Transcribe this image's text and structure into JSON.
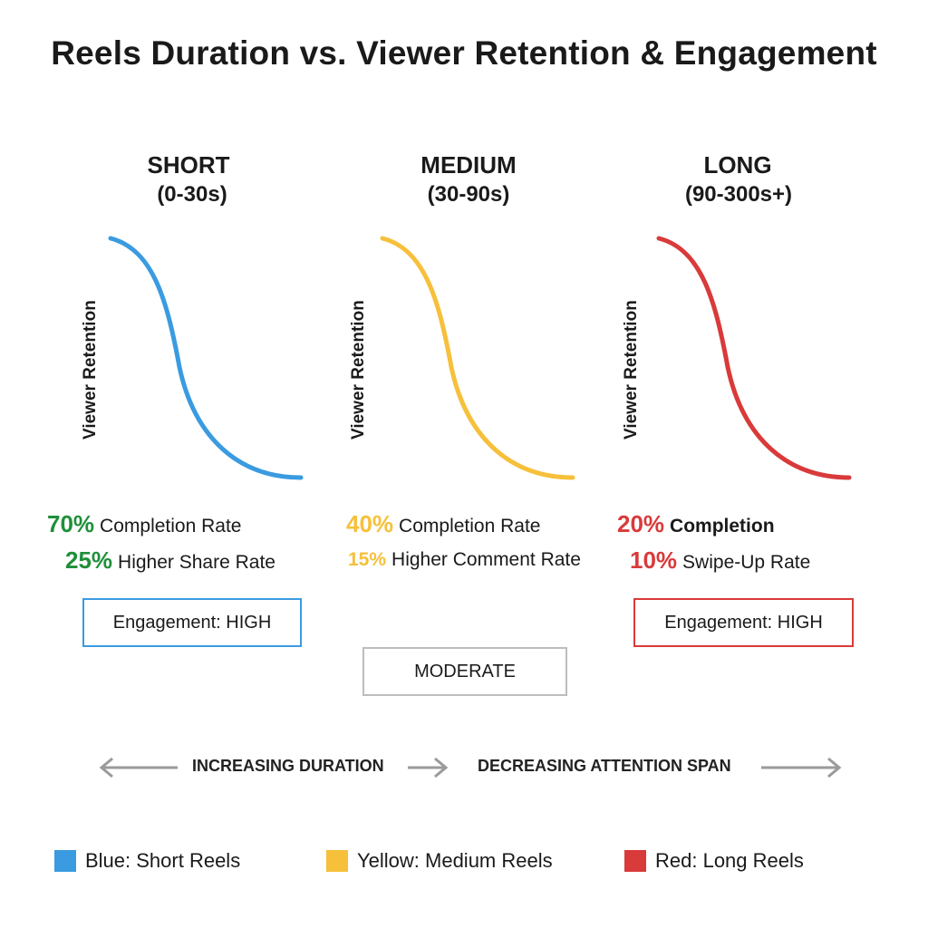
{
  "title": "Reels Duration vs. Viewer Retention & Engagement",
  "colors": {
    "short": "#3b9be0",
    "medium": "#f6c03b",
    "long": "#d93a3a",
    "green": "#1f8f3a",
    "gray": "#9a9a9a"
  },
  "panels": [
    {
      "name": "SHORT",
      "range": "(0-30s)",
      "y_label": "Viewer Retention",
      "stat1_value": "70%",
      "stat1_label": "Completion Rate",
      "stat2_value": "25%",
      "stat2_label": "Higher Share Rate",
      "engagement": "Engagement: HIGH"
    },
    {
      "name": "MEDIUM",
      "range": "(30-90s)",
      "y_label": "Viewer Retention",
      "stat1_value": "40%",
      "stat1_label": "Completion Rate",
      "stat2_value": "15%",
      "stat2_label": "Higher Comment Rate",
      "engagement": "MODERATE"
    },
    {
      "name": "LONG",
      "range": "(90-300s+)",
      "y_label": "Viewer Retention",
      "stat1_value": "20%",
      "stat1_label": "Completion",
      "stat2_value": "10%",
      "stat2_label": "Swipe-Up Rate",
      "engagement": "Engagement: HIGH"
    }
  ],
  "axis_arrows": {
    "left_text": "INCREASING DURATION",
    "right_text": "DECREASING ATTENTION SPAN"
  },
  "legend": [
    {
      "label": "Blue: Short Reels"
    },
    {
      "label": "Yellow: Medium Reels"
    },
    {
      "label": "Red: Long Reels"
    }
  ]
}
